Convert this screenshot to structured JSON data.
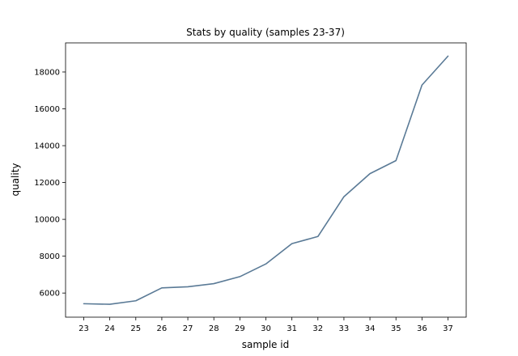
{
  "chart_data": {
    "type": "line",
    "title": "Stats by quality (samples 23-37)",
    "xlabel": "sample id",
    "ylabel": "quality",
    "x": [
      23,
      24,
      25,
      26,
      27,
      28,
      29,
      30,
      31,
      32,
      33,
      34,
      35,
      36,
      37
    ],
    "series": [
      {
        "values": [
          5420,
          5390,
          5580,
          6280,
          6340,
          6510,
          6890,
          7580,
          8680,
          9070,
          11230,
          12480,
          13190,
          17290,
          18860
        ],
        "color": "#5a7a96"
      }
    ],
    "xlim": [
      22.3,
      37.7
    ],
    "ylim": [
      4690,
      19580
    ],
    "x_ticks": [
      23,
      24,
      25,
      26,
      27,
      28,
      29,
      30,
      31,
      32,
      33,
      34,
      35,
      36,
      37
    ],
    "y_ticks": [
      6000,
      8000,
      10000,
      12000,
      14000,
      16000,
      18000
    ],
    "grid": false,
    "legend": "none"
  }
}
